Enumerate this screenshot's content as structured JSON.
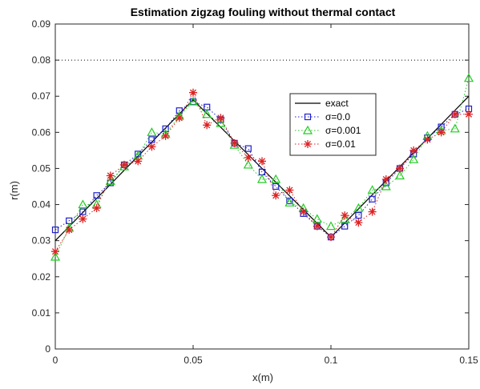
{
  "chart_data": {
    "type": "line",
    "title": "Estimation zigzag fouling without thermal contact",
    "xlabel": "x(m)",
    "ylabel": "r(m)",
    "xlim": [
      0,
      0.15
    ],
    "ylim": [
      0,
      0.09
    ],
    "xticks": [
      "0",
      "0.05",
      "0.1",
      "0.15"
    ],
    "yticks": [
      "0",
      "0.01",
      "0.02",
      "0.03",
      "0.04",
      "0.05",
      "0.06",
      "0.07",
      "0.08",
      "0.09"
    ],
    "grid": false,
    "legend_position": "inside-upper-right-of-center",
    "reference_line": {
      "y": 0.08,
      "style": "dotted",
      "color": "#000000"
    },
    "series": [
      {
        "name": "exact",
        "style": "solid",
        "marker": "none",
        "color": "#000000",
        "x": [
          0,
          0.05,
          0.1,
          0.15
        ],
        "y": [
          0.03,
          0.069,
          0.031,
          0.07
        ]
      },
      {
        "name": "σ=0.0",
        "style": "dotted",
        "marker": "square",
        "color": "#1f1fcc",
        "x": [
          0,
          0.005,
          0.01,
          0.015,
          0.02,
          0.025,
          0.03,
          0.035,
          0.04,
          0.045,
          0.05,
          0.055,
          0.06,
          0.065,
          0.07,
          0.075,
          0.08,
          0.085,
          0.09,
          0.095,
          0.1,
          0.105,
          0.11,
          0.115,
          0.12,
          0.125,
          0.13,
          0.135,
          0.14,
          0.145,
          0.15
        ],
        "y": [
          0.033,
          0.0355,
          0.038,
          0.0425,
          0.046,
          0.051,
          0.054,
          0.058,
          0.061,
          0.066,
          0.0685,
          0.067,
          0.0635,
          0.057,
          0.0555,
          0.049,
          0.045,
          0.041,
          0.0375,
          0.034,
          0.031,
          0.034,
          0.037,
          0.0415,
          0.046,
          0.05,
          0.054,
          0.0585,
          0.0615,
          0.065,
          0.0665
        ]
      },
      {
        "name": "σ=0.001",
        "style": "dotted",
        "marker": "triangle",
        "color": "#22cc22",
        "x": [
          0,
          0.005,
          0.01,
          0.015,
          0.02,
          0.025,
          0.03,
          0.035,
          0.04,
          0.045,
          0.05,
          0.055,
          0.06,
          0.065,
          0.07,
          0.075,
          0.08,
          0.085,
          0.09,
          0.095,
          0.1,
          0.105,
          0.11,
          0.115,
          0.12,
          0.125,
          0.13,
          0.135,
          0.14,
          0.145,
          0.15
        ],
        "y": [
          0.0255,
          0.0335,
          0.04,
          0.04,
          0.0465,
          0.0505,
          0.0535,
          0.06,
          0.0595,
          0.0645,
          0.0685,
          0.065,
          0.0625,
          0.0565,
          0.051,
          0.047,
          0.047,
          0.0405,
          0.039,
          0.036,
          0.034,
          0.036,
          0.039,
          0.044,
          0.045,
          0.048,
          0.0525,
          0.059,
          0.0605,
          0.061,
          0.075
        ]
      },
      {
        "name": "σ=0.01",
        "style": "dotted",
        "marker": "asterisk",
        "color": "#dd2222",
        "x": [
          0,
          0.005,
          0.01,
          0.015,
          0.02,
          0.025,
          0.03,
          0.035,
          0.04,
          0.045,
          0.05,
          0.055,
          0.06,
          0.065,
          0.07,
          0.075,
          0.08,
          0.085,
          0.09,
          0.095,
          0.1,
          0.105,
          0.11,
          0.115,
          0.12,
          0.125,
          0.13,
          0.135,
          0.14,
          0.145,
          0.15
        ],
        "y": [
          0.027,
          0.033,
          0.036,
          0.039,
          0.048,
          0.051,
          0.052,
          0.056,
          0.059,
          0.064,
          0.071,
          0.062,
          0.064,
          0.057,
          0.053,
          0.052,
          0.0425,
          0.044,
          0.038,
          0.034,
          0.031,
          0.037,
          0.035,
          0.038,
          0.047,
          0.05,
          0.055,
          0.058,
          0.06,
          0.065,
          0.065
        ]
      }
    ]
  }
}
